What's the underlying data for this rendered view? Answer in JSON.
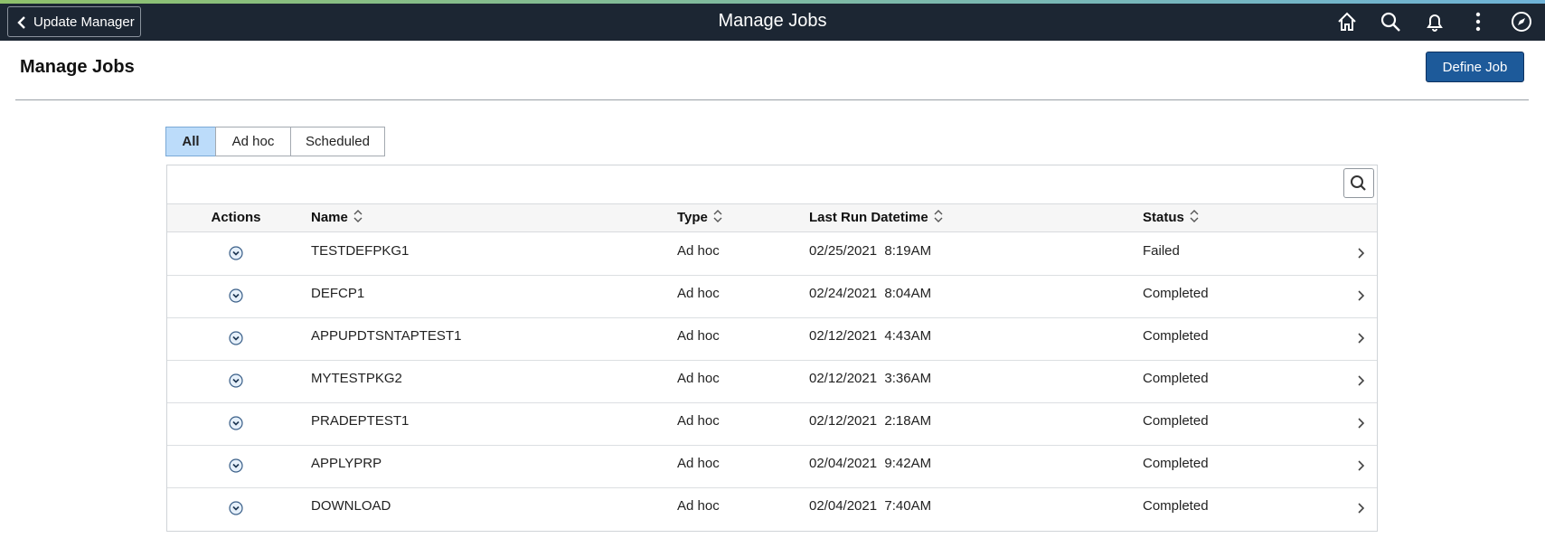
{
  "header": {
    "back": "Update Manager",
    "title": "Manage Jobs"
  },
  "page": {
    "title": "Manage Jobs",
    "define_button": "Define Job"
  },
  "tabs": [
    "All",
    "Ad hoc",
    "Scheduled"
  ],
  "table": {
    "columns": [
      "Actions",
      "Name",
      "Type",
      "Last Run Datetime",
      "Status"
    ],
    "rows": [
      [
        "TESTDEFPKG1",
        "Ad hoc",
        "02/25/2021  8:19AM",
        "Failed"
      ],
      [
        "DEFCP1",
        "Ad hoc",
        "02/24/2021  8:04AM",
        "Completed"
      ],
      [
        "APPUPDTSNTAPTEST1",
        "Ad hoc",
        "02/12/2021  4:43AM",
        "Completed"
      ],
      [
        "MYTESTPKG2",
        "Ad hoc",
        "02/12/2021  3:36AM",
        "Completed"
      ],
      [
        "PRADEPTEST1",
        "Ad hoc",
        "02/12/2021  2:18AM",
        "Completed"
      ],
      [
        "APPLYPRP",
        "Ad hoc",
        "02/04/2021  9:42AM",
        "Completed"
      ],
      [
        "DOWNLOAD",
        "Ad hoc",
        "02/04/2021  7:40AM",
        "Completed"
      ]
    ]
  }
}
